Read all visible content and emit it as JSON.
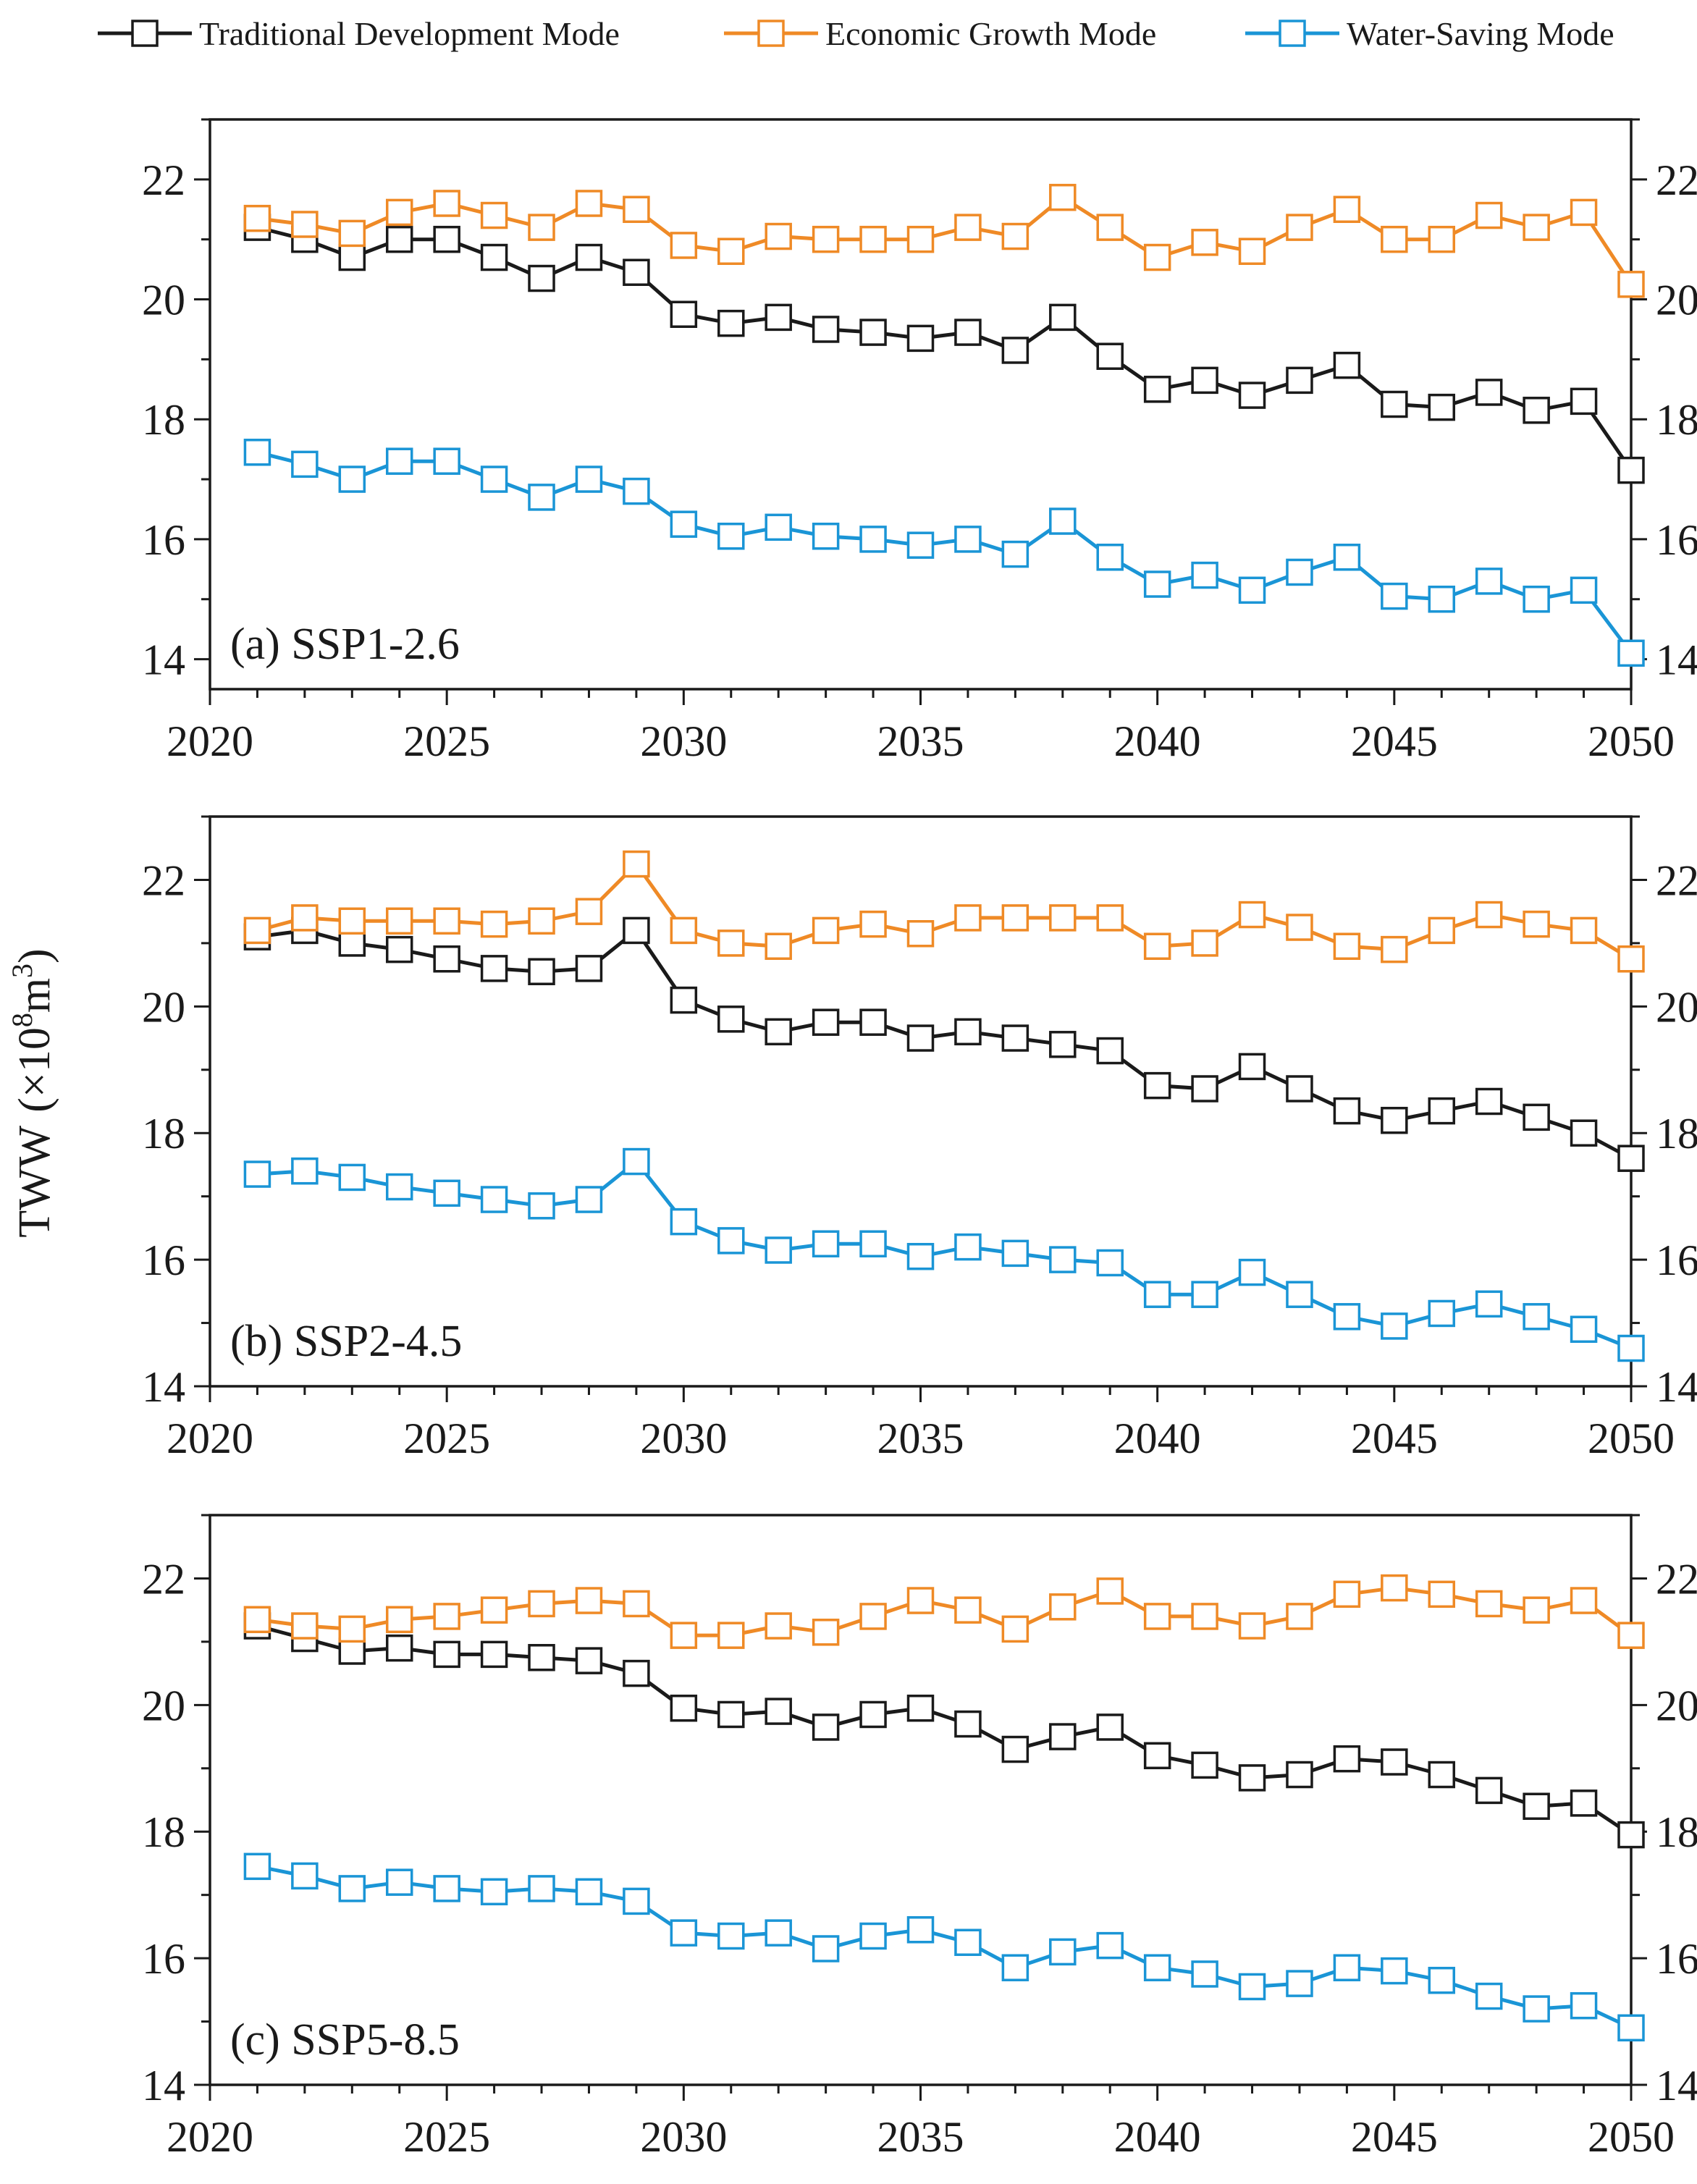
{
  "colors": {
    "traditional": "#1a1a1a",
    "economic": "#ef8a26",
    "water_saving": "#1a95d6",
    "axis": "#1a1a1a"
  },
  "legend": [
    {
      "key": "traditional",
      "label": "Traditional Development Mode"
    },
    {
      "key": "economic",
      "label": "Economic Growth Mode"
    },
    {
      "key": "water_saving",
      "label": "Water-Saving Mode"
    }
  ],
  "y_axis_title": {
    "prefix": "TWW",
    "unit": "(×10",
    "exp1": "8",
    "m": "m",
    "exp2": "3",
    "close": ")"
  },
  "chart_data": [
    {
      "type": "line",
      "panel_label": "(a) SSP1-2.6",
      "x": [
        2021,
        2022,
        2023,
        2024,
        2025,
        2026,
        2027,
        2028,
        2029,
        2030,
        2031,
        2032,
        2033,
        2034,
        2035,
        2036,
        2037,
        2038,
        2039,
        2040,
        2041,
        2042,
        2043,
        2044,
        2045,
        2046,
        2047,
        2048,
        2049,
        2050
      ],
      "xlim": [
        2020,
        2050
      ],
      "ylim": [
        13.5,
        23
      ],
      "xticks": [
        "2020",
        "2025",
        "2030",
        "2035",
        "2040",
        "2045",
        "2050"
      ],
      "yticks": [
        "14",
        "16",
        "18",
        "20",
        "22"
      ],
      "series": [
        {
          "key": "traditional",
          "name": "Traditional Development Mode",
          "values": [
            21.2,
            21.0,
            20.7,
            21.0,
            21.0,
            20.7,
            20.35,
            20.7,
            20.45,
            19.75,
            19.6,
            19.7,
            19.5,
            19.45,
            19.35,
            19.45,
            19.15,
            19.7,
            19.05,
            18.5,
            18.65,
            18.4,
            18.65,
            18.9,
            18.25,
            18.2,
            18.45,
            18.15,
            18.3,
            17.15
          ]
        },
        {
          "key": "economic",
          "name": "Economic Growth Mode",
          "values": [
            21.35,
            21.25,
            21.1,
            21.45,
            21.6,
            21.4,
            21.2,
            21.6,
            21.5,
            20.9,
            20.8,
            21.05,
            21.0,
            21.0,
            21.0,
            21.2,
            21.05,
            21.7,
            21.2,
            20.7,
            20.95,
            20.8,
            21.2,
            21.5,
            21.0,
            21.0,
            21.4,
            21.2,
            21.45,
            20.25
          ]
        },
        {
          "key": "water_saving",
          "name": "Water-Saving Mode",
          "values": [
            17.45,
            17.25,
            17.0,
            17.3,
            17.3,
            17.0,
            16.7,
            17.0,
            16.8,
            16.25,
            16.05,
            16.2,
            16.05,
            16.0,
            15.9,
            16.0,
            15.75,
            16.3,
            15.7,
            15.25,
            15.4,
            15.15,
            15.45,
            15.7,
            15.05,
            15.0,
            15.3,
            15.0,
            15.15,
            14.1
          ]
        }
      ]
    },
    {
      "type": "line",
      "panel_label": "(b) SSP2-4.5",
      "x": [
        2021,
        2022,
        2023,
        2024,
        2025,
        2026,
        2027,
        2028,
        2029,
        2030,
        2031,
        2032,
        2033,
        2034,
        2035,
        2036,
        2037,
        2038,
        2039,
        2040,
        2041,
        2042,
        2043,
        2044,
        2045,
        2046,
        2047,
        2048,
        2049,
        2050
      ],
      "xlim": [
        2020,
        2050
      ],
      "ylim": [
        14,
        23
      ],
      "xticks": [
        "2020",
        "2025",
        "2030",
        "2035",
        "2040",
        "2045",
        "2050"
      ],
      "yticks": [
        "14",
        "16",
        "18",
        "20",
        "22"
      ],
      "series": [
        {
          "key": "traditional",
          "name": "Traditional Development Mode",
          "values": [
            21.1,
            21.2,
            21.0,
            20.9,
            20.75,
            20.6,
            20.55,
            20.6,
            21.2,
            20.1,
            19.8,
            19.6,
            19.75,
            19.75,
            19.5,
            19.6,
            19.5,
            19.4,
            19.3,
            18.75,
            18.7,
            19.05,
            18.7,
            18.35,
            18.2,
            18.35,
            18.5,
            18.25,
            18.0,
            17.6
          ]
        },
        {
          "key": "economic",
          "name": "Economic Growth Mode",
          "values": [
            21.2,
            21.4,
            21.35,
            21.35,
            21.35,
            21.3,
            21.35,
            21.5,
            22.25,
            21.2,
            21.0,
            20.95,
            21.2,
            21.3,
            21.15,
            21.4,
            21.4,
            21.4,
            21.4,
            20.95,
            21.0,
            21.45,
            21.25,
            20.95,
            20.9,
            21.2,
            21.45,
            21.3,
            21.2,
            20.75
          ]
        },
        {
          "key": "water_saving",
          "name": "Water-Saving Mode",
          "values": [
            17.35,
            17.4,
            17.3,
            17.15,
            17.05,
            16.95,
            16.85,
            16.95,
            17.55,
            16.6,
            16.3,
            16.15,
            16.25,
            16.25,
            16.05,
            16.2,
            16.1,
            16.0,
            15.95,
            15.45,
            15.45,
            15.8,
            15.45,
            15.1,
            14.95,
            15.15,
            15.3,
            15.1,
            14.9,
            14.6
          ]
        }
      ]
    },
    {
      "type": "line",
      "panel_label": "(c) SSP5-8.5",
      "x": [
        2021,
        2022,
        2023,
        2024,
        2025,
        2026,
        2027,
        2028,
        2029,
        2030,
        2031,
        2032,
        2033,
        2034,
        2035,
        2036,
        2037,
        2038,
        2039,
        2040,
        2041,
        2042,
        2043,
        2044,
        2045,
        2046,
        2047,
        2048,
        2049,
        2050
      ],
      "xlim": [
        2020,
        2050
      ],
      "ylim": [
        14,
        23
      ],
      "xticks": [
        "2020",
        "2025",
        "2030",
        "2035",
        "2040",
        "2045",
        "2050"
      ],
      "yticks": [
        "14",
        "16",
        "18",
        "20",
        "22"
      ],
      "series": [
        {
          "key": "traditional",
          "name": "Traditional Development Mode",
          "values": [
            21.25,
            21.05,
            20.85,
            20.9,
            20.8,
            20.8,
            20.75,
            20.7,
            20.5,
            19.95,
            19.85,
            19.9,
            19.65,
            19.85,
            19.95,
            19.7,
            19.3,
            19.5,
            19.65,
            19.2,
            19.05,
            18.85,
            18.9,
            19.15,
            19.1,
            18.9,
            18.65,
            18.4,
            18.45,
            17.95
          ]
        },
        {
          "key": "economic",
          "name": "Economic Growth Mode",
          "values": [
            21.35,
            21.25,
            21.2,
            21.35,
            21.4,
            21.5,
            21.6,
            21.65,
            21.6,
            21.1,
            21.1,
            21.25,
            21.15,
            21.4,
            21.65,
            21.5,
            21.2,
            21.55,
            21.8,
            21.4,
            21.4,
            21.25,
            21.4,
            21.75,
            21.85,
            21.75,
            21.6,
            21.5,
            21.65,
            21.1
          ]
        },
        {
          "key": "water_saving",
          "name": "Water-Saving Mode",
          "values": [
            17.45,
            17.3,
            17.1,
            17.2,
            17.1,
            17.05,
            17.1,
            17.05,
            16.9,
            16.4,
            16.35,
            16.4,
            16.15,
            16.35,
            16.45,
            16.25,
            15.85,
            16.1,
            16.2,
            15.85,
            15.75,
            15.55,
            15.6,
            15.85,
            15.8,
            15.65,
            15.4,
            15.2,
            15.25,
            14.9
          ]
        }
      ]
    }
  ]
}
